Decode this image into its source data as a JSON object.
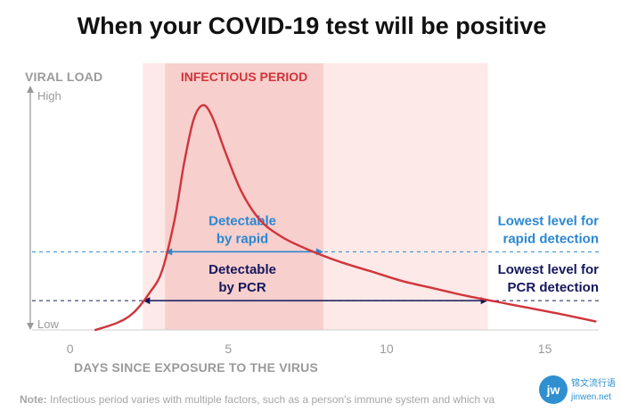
{
  "chart_data": {
    "type": "line",
    "title": "When your COVID-19 test will be positive",
    "ylabel": "VIRAL LOAD",
    "y_high_label": "High",
    "y_low_label": "Low",
    "xlabel": "DAYS SINCE EXPOSURE TO THE VIRUS",
    "xlim": [
      -1.2,
      16.7
    ],
    "ylim": [
      0,
      100
    ],
    "x_ticks": [
      0,
      5,
      10,
      15
    ],
    "y_ticks_printed": false,
    "grid": false,
    "curve_color": "#d0343b",
    "curve_points": [
      [
        0.8,
        0
      ],
      [
        1.5,
        3
      ],
      [
        2.0,
        7
      ],
      [
        2.5,
        15
      ],
      [
        2.9,
        24
      ],
      [
        3.3,
        45
      ],
      [
        3.6,
        68
      ],
      [
        3.9,
        86
      ],
      [
        4.2,
        92
      ],
      [
        4.5,
        87
      ],
      [
        4.9,
        73
      ],
      [
        5.4,
        57
      ],
      [
        6.0,
        45
      ],
      [
        6.7,
        38
      ],
      [
        7.5,
        33
      ],
      [
        8.5,
        28
      ],
      [
        9.5,
        24
      ],
      [
        10.5,
        20
      ],
      [
        11.5,
        17
      ],
      [
        12.5,
        14
      ],
      [
        13.5,
        11.5
      ],
      [
        14.5,
        9
      ],
      [
        15.5,
        6.5
      ],
      [
        16.6,
        3.5
      ]
    ],
    "infectious_period": {
      "label": "INFECTIOUS PERIOD",
      "x_start": 3.0,
      "x_end": 8.0,
      "color": "#f7cfcc"
    },
    "wide_band": {
      "x_start": 2.3,
      "x_end": 13.2,
      "color": "#fde9e7"
    },
    "thresholds": [
      {
        "id": "rapid",
        "y": 32,
        "color": "#2b87d1",
        "span_label": [
          "Detectable",
          "by rapid"
        ],
        "line_label": [
          "Lowest level for",
          "rapid detection"
        ],
        "x_start": 3.0,
        "x_end": 8.0
      },
      {
        "id": "pcr",
        "y": 12,
        "color": "#15175c",
        "span_label": [
          "Detectable",
          "by PCR"
        ],
        "line_label": [
          "Lowest level for",
          "PCR detection"
        ],
        "x_start": 2.3,
        "x_end": 13.2
      }
    ]
  },
  "note": {
    "prefix": "Note:",
    "text": " Infectious period varies with multiple factors, such as a person's immune system and which va"
  },
  "watermark": {
    "badge": "jw",
    "line1": "锦文流行语",
    "line2": "jinwen.net"
  }
}
